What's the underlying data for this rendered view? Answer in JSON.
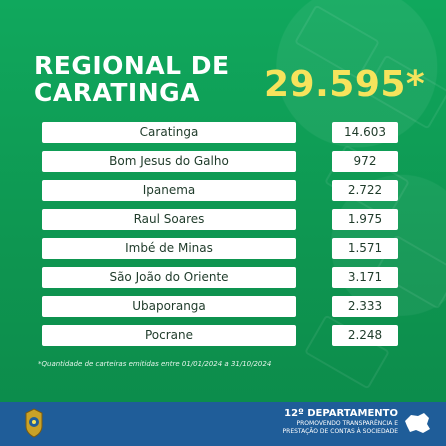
{
  "header": {
    "title_line1": "REGIONAL DE",
    "title_line2": "CARATINGA",
    "total": "29.595*"
  },
  "rows": [
    {
      "name": "Caratinga",
      "value": "14.603"
    },
    {
      "name": "Bom Jesus do Galho",
      "value": "972"
    },
    {
      "name": "Ipanema",
      "value": "2.722"
    },
    {
      "name": "Raul Soares",
      "value": "1.975"
    },
    {
      "name": "Imbé de Minas",
      "value": "1.571"
    },
    {
      "name": "São João do  Oriente",
      "value": "3.171"
    },
    {
      "name": "Ubaporanga",
      "value": "2.333"
    },
    {
      "name": "Pocrane",
      "value": "2.248"
    }
  ],
  "footnote": "*Quantidade de carteiras emitidas entre 01/01/2024 a 31/10/2024",
  "footer": {
    "dept_title": "12º DEPARTAMENTO",
    "dept_sub1": "PROMOVENDO TRANSPARÊNCIA E",
    "dept_sub2": "PRESTAÇÃO DE CONTAS À SOCIEDADE",
    "badge_icon": "police-badge-icon",
    "state_icon": "minas-gerais-map-icon",
    "colors": {
      "footer_bg": "#1f5d99",
      "accent": "#f6e35c",
      "bg": "#0f9a55"
    }
  }
}
